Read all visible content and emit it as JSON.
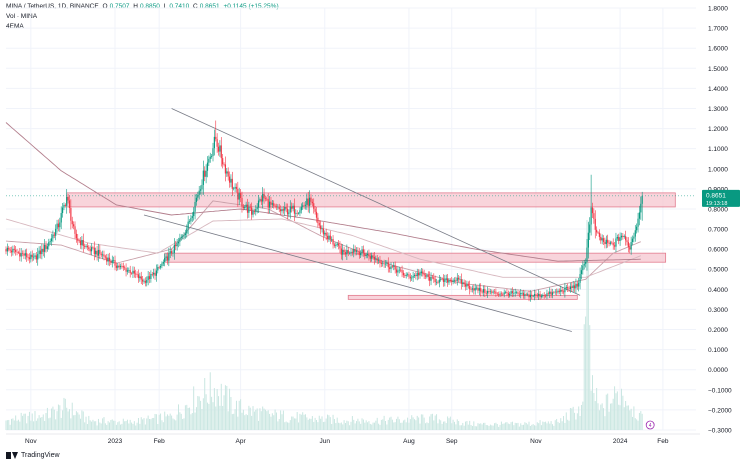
{
  "header": {
    "symbol": "MINA / TetherUS, 1D, BINANCE",
    "open_label": "O",
    "open": "0.7507",
    "high_label": "H",
    "high": "0.8850",
    "low_label": "L",
    "low": "0.7410",
    "close_label": "C",
    "close": "0.8651",
    "change": "+0.1145 (+15.25%)",
    "vol_label": "Vol · MINA",
    "ema_label": "4EMA"
  },
  "footer": {
    "brand": "TradingView"
  },
  "colors": {
    "up": "#089981",
    "down": "#f23645",
    "zone_fill": "#f6c6cf",
    "zone_stroke": "#e27b8e",
    "trendline": "#787b86",
    "ema_fast": "#c9a0a9",
    "ema_slow": "#b37f8d",
    "ema_mid": "#d7b8bf",
    "volume": "#c9e6e1"
  },
  "chart_data": {
    "type": "candlestick",
    "ylim": [
      -0.3,
      1.8
    ],
    "y_ticks": [
      "1.8000",
      "1.7000",
      "1.6000",
      "1.5000",
      "1.4000",
      "1.3000",
      "1.2000",
      "1.1000",
      "1.0000",
      "0.9000",
      "0.8000",
      "0.7000",
      "0.6000",
      "0.5000",
      "0.4000",
      "0.3000",
      "0.2000",
      "0.1000",
      "0.0000",
      "−0.1000",
      "−0.2000",
      "−0.3000"
    ],
    "y_tick_values": [
      1.8,
      1.7,
      1.6,
      1.5,
      1.4,
      1.3,
      1.2,
      1.1,
      1.0,
      0.9,
      0.8,
      0.7,
      0.6,
      0.5,
      0.4,
      0.3,
      0.2,
      0.1,
      0.0,
      -0.1,
      -0.2,
      -0.3
    ],
    "x_ticks": [
      "Nov",
      "2023",
      "Feb",
      "Apr",
      "Jun",
      "Aug",
      "Sep",
      "Nov",
      "2024",
      "Feb"
    ],
    "x_tick_days": [
      18,
      79,
      111,
      170,
      231,
      292,
      323,
      384,
      445,
      476
    ],
    "last_price": "0.8651",
    "countdown": "19:13:18",
    "ref_price": 0.8651,
    "price_points": [
      [
        0,
        0.6
      ],
      [
        10,
        0.58
      ],
      [
        20,
        0.55
      ],
      [
        30,
        0.62
      ],
      [
        38,
        0.72
      ],
      [
        44,
        0.86
      ],
      [
        50,
        0.66
      ],
      [
        60,
        0.6
      ],
      [
        70,
        0.57
      ],
      [
        80,
        0.52
      ],
      [
        90,
        0.49
      ],
      [
        100,
        0.44
      ],
      [
        108,
        0.48
      ],
      [
        116,
        0.55
      ],
      [
        124,
        0.62
      ],
      [
        132,
        0.72
      ],
      [
        140,
        0.9
      ],
      [
        147,
        1.05
      ],
      [
        152,
        1.15
      ],
      [
        158,
        1.02
      ],
      [
        165,
        0.9
      ],
      [
        172,
        0.82
      ],
      [
        178,
        0.78
      ],
      [
        186,
        0.86
      ],
      [
        194,
        0.8
      ],
      [
        202,
        0.79
      ],
      [
        212,
        0.8
      ],
      [
        220,
        0.84
      ],
      [
        228,
        0.7
      ],
      [
        236,
        0.64
      ],
      [
        244,
        0.58
      ],
      [
        252,
        0.6
      ],
      [
        262,
        0.57
      ],
      [
        272,
        0.54
      ],
      [
        282,
        0.5
      ],
      [
        292,
        0.46
      ],
      [
        300,
        0.48
      ],
      [
        308,
        0.45
      ],
      [
        316,
        0.44
      ],
      [
        326,
        0.45
      ],
      [
        336,
        0.41
      ],
      [
        346,
        0.39
      ],
      [
        356,
        0.38
      ],
      [
        366,
        0.38
      ],
      [
        376,
        0.37
      ],
      [
        386,
        0.37
      ],
      [
        396,
        0.38
      ],
      [
        406,
        0.4
      ],
      [
        414,
        0.42
      ],
      [
        420,
        0.55
      ],
      [
        424,
        0.8
      ],
      [
        428,
        0.67
      ],
      [
        434,
        0.63
      ],
      [
        440,
        0.62
      ],
      [
        446,
        0.67
      ],
      [
        452,
        0.61
      ],
      [
        457,
        0.72
      ],
      [
        461,
        0.87
      ]
    ],
    "volume_points": [
      [
        0,
        0.05
      ],
      [
        30,
        0.08
      ],
      [
        44,
        0.12
      ],
      [
        60,
        0.05
      ],
      [
        90,
        0.04
      ],
      [
        120,
        0.07
      ],
      [
        140,
        0.18
      ],
      [
        152,
        0.22
      ],
      [
        166,
        0.12
      ],
      [
        190,
        0.08
      ],
      [
        220,
        0.06
      ],
      [
        250,
        0.05
      ],
      [
        280,
        0.05
      ],
      [
        310,
        0.06
      ],
      [
        340,
        0.03
      ],
      [
        370,
        0.03
      ],
      [
        400,
        0.04
      ],
      [
        418,
        0.12
      ],
      [
        421,
        1.0
      ],
      [
        424,
        0.25
      ],
      [
        430,
        0.1
      ],
      [
        446,
        0.2
      ],
      [
        458,
        0.08
      ],
      [
        461,
        0.06
      ]
    ],
    "zones": [
      {
        "x0": 44,
        "x1": 485,
        "y0": 0.81,
        "y1": 0.88
      },
      {
        "x0": 115,
        "x1": 478,
        "y0": 0.535,
        "y1": 0.58
      },
      {
        "x0": 248,
        "x1": 414,
        "y0": 0.35,
        "y1": 0.37
      }
    ],
    "trendlines": [
      {
        "x0": 120,
        "y0": 1.3,
        "x1": 416,
        "y1": 0.37
      },
      {
        "x0": 100,
        "y0": 0.77,
        "x1": 410,
        "y1": 0.19
      }
    ],
    "ema_lines": [
      {
        "name": "ema_fast",
        "points": [
          [
            0,
            0.64
          ],
          [
            40,
            0.62
          ],
          [
            80,
            0.53
          ],
          [
            120,
            0.6
          ],
          [
            150,
            0.84
          ],
          [
            190,
            0.8
          ],
          [
            230,
            0.66
          ],
          [
            280,
            0.52
          ],
          [
            330,
            0.43
          ],
          [
            380,
            0.39
          ],
          [
            420,
            0.45
          ],
          [
            440,
            0.58
          ],
          [
            461,
            0.64
          ]
        ]
      },
      {
        "name": "ema_mid",
        "points": [
          [
            0,
            0.75
          ],
          [
            60,
            0.63
          ],
          [
            110,
            0.58
          ],
          [
            150,
            0.74
          ],
          [
            200,
            0.75
          ],
          [
            250,
            0.67
          ],
          [
            300,
            0.55
          ],
          [
            360,
            0.46
          ],
          [
            420,
            0.46
          ],
          [
            461,
            0.57
          ]
        ]
      },
      {
        "name": "ema_slow",
        "points": [
          [
            0,
            1.23
          ],
          [
            40,
            0.99
          ],
          [
            80,
            0.82
          ],
          [
            120,
            0.77
          ],
          [
            170,
            0.8
          ],
          [
            220,
            0.75
          ],
          [
            280,
            0.68
          ],
          [
            340,
            0.6
          ],
          [
            400,
            0.54
          ],
          [
            461,
            0.55
          ]
        ]
      }
    ],
    "volume_marker": {
      "day": 461,
      "label": "4"
    },
    "xlim_days": [
      0,
      500
    ]
  }
}
